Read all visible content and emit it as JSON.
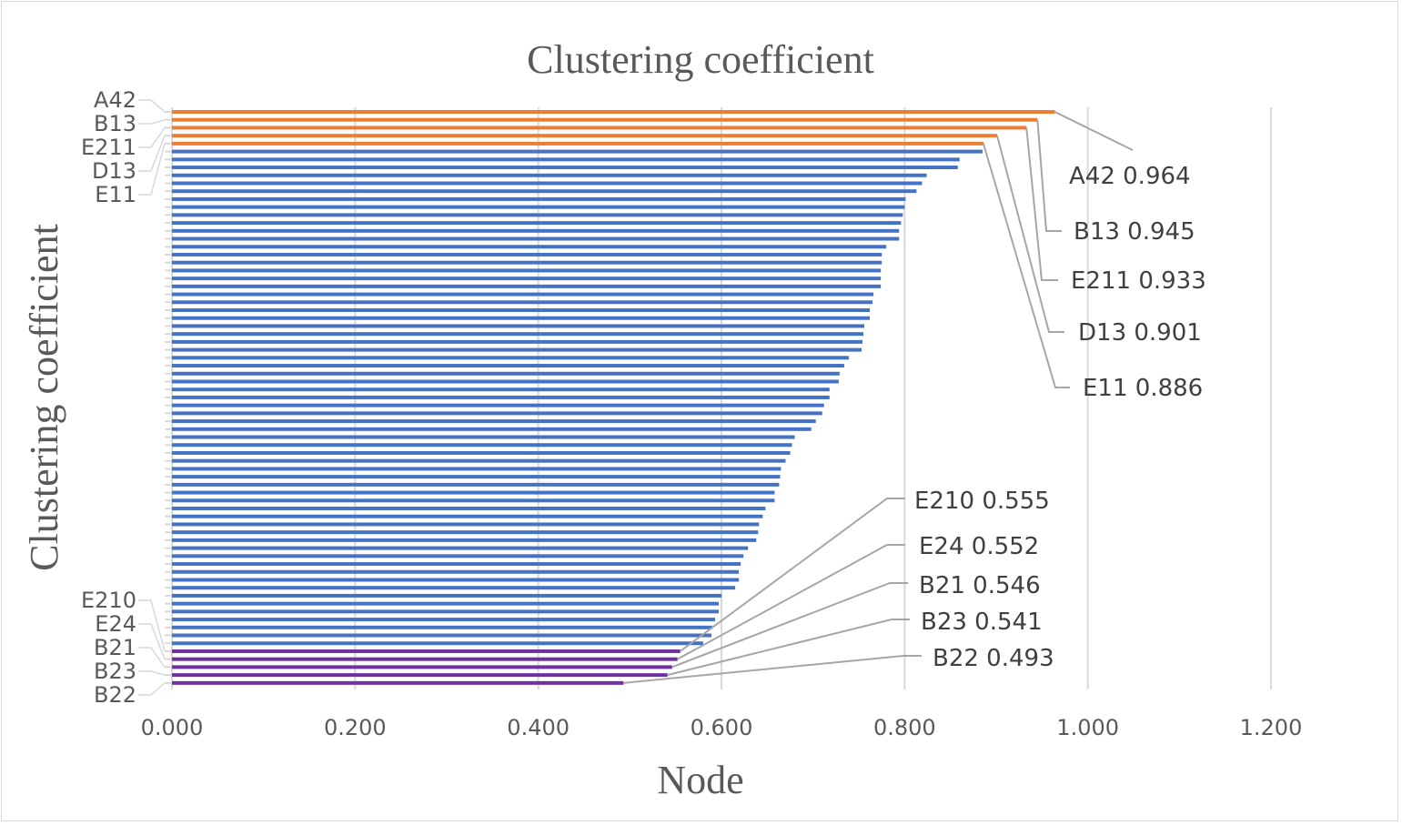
{
  "chart_data": {
    "type": "bar",
    "orientation": "horizontal",
    "title": "Clustering coefficient",
    "xlabel": "Node",
    "ylabel": "Clustering coefficient",
    "xlim": [
      0,
      1.2
    ],
    "xticks": [
      "0.000",
      "0.200",
      "0.400",
      "0.600",
      "0.800",
      "1.000",
      "1.200"
    ],
    "grid": "vertical",
    "colors": {
      "top": "#ED7D31",
      "middle": "#4472C4",
      "bottom": "#7030A0",
      "grid": "#d9d9d9",
      "text": "#595959",
      "leader": "#a6a6a6"
    },
    "series": [
      {
        "name": "top",
        "color_key": "top",
        "categories": [
          "A42",
          "B13",
          "E211",
          "D13",
          "E11"
        ],
        "values": [
          0.964,
          0.945,
          0.933,
          0.901,
          0.886
        ]
      },
      {
        "name": "middle",
        "color_key": "middle",
        "categories": [],
        "values": [
          0.885,
          0.86,
          0.858,
          0.824,
          0.819,
          0.813,
          0.801,
          0.8,
          0.798,
          0.796,
          0.794,
          0.794,
          0.78,
          0.775,
          0.775,
          0.774,
          0.774,
          0.774,
          0.766,
          0.765,
          0.762,
          0.762,
          0.756,
          0.755,
          0.754,
          0.753,
          0.739,
          0.734,
          0.729,
          0.728,
          0.718,
          0.718,
          0.712,
          0.71,
          0.703,
          0.698,
          0.68,
          0.677,
          0.675,
          0.67,
          0.665,
          0.664,
          0.663,
          0.658,
          0.658,
          0.648,
          0.645,
          0.641,
          0.64,
          0.638,
          0.629,
          0.624,
          0.621,
          0.619,
          0.619,
          0.615,
          0.6,
          0.597,
          0.597,
          0.593,
          0.59,
          0.589,
          0.58
        ]
      },
      {
        "name": "bottom",
        "color_key": "bottom",
        "categories": [
          "E210",
          "E24",
          "B21",
          "B23",
          "B22"
        ],
        "values": [
          0.555,
          0.552,
          0.546,
          0.541,
          0.493
        ]
      }
    ],
    "annotations": [
      {
        "text": "A42 0.964"
      },
      {
        "text": "B13 0.945"
      },
      {
        "text": "E211 0.933"
      },
      {
        "text": "D13 0.901"
      },
      {
        "text": "E11 0.886"
      },
      {
        "text": "E210 0.555"
      },
      {
        "text": "E24 0.552"
      },
      {
        "text": "B21 0.546"
      },
      {
        "text": "B23 0.541"
      },
      {
        "text": "B22 0.493"
      }
    ]
  }
}
